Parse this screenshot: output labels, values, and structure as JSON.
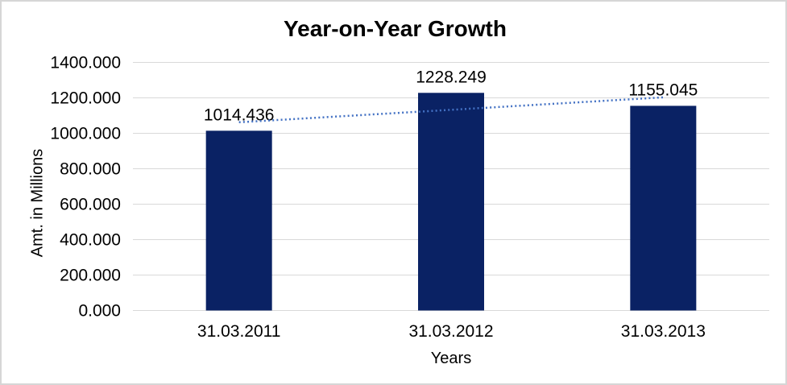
{
  "chart": {
    "title": "Year-on-Year Growth",
    "y_axis_title": "Amt. in Millions",
    "x_axis_title": "Years"
  },
  "chart_data": {
    "type": "bar",
    "title": "Year-on-Year Growth",
    "xlabel": "Years",
    "ylabel": "Amt. in Millions",
    "categories": [
      "31.03.2011",
      "31.03.2012",
      "31.03.2013"
    ],
    "values": [
      1014.436,
      1228.249,
      1155.045
    ],
    "data_labels": [
      "1014.436",
      "1228.249",
      "1155.045"
    ],
    "ylim": [
      0,
      1400
    ],
    "ytick_step": 200,
    "ytick_labels": [
      "0.000",
      "200.000",
      "400.000",
      "600.000",
      "800.000",
      "1000.000",
      "1200.000",
      "1400.000"
    ],
    "grid": true,
    "legend": "none",
    "bar_color": "#0a2264",
    "grid_color": "#d9d9d9",
    "trendline": {
      "type": "linear",
      "style": "dotted",
      "color": "#4472c4"
    }
  }
}
